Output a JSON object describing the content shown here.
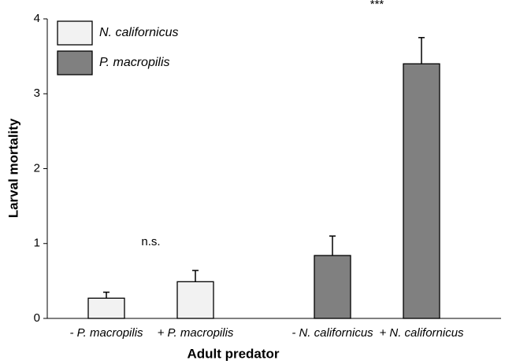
{
  "chart_data": {
    "type": "bar",
    "x_label": "Adult predator",
    "y_label": "Larval mortality",
    "categories": [
      "- P. macropilis",
      "+ P. macropilis",
      "- N. californicus",
      "+ N. californicus"
    ],
    "series": [
      {
        "name": "N. californicus",
        "color": "#f2f2f2",
        "values": [
          0.27,
          0.49,
          null,
          null
        ],
        "errors": [
          0.08,
          0.15,
          null,
          null
        ]
      },
      {
        "name": "P. macropilis",
        "color": "#808080",
        "values": [
          null,
          null,
          0.84,
          3.4
        ],
        "errors": [
          null,
          null,
          0.26,
          0.35
        ]
      }
    ],
    "annotations": [
      "n.s.",
      "***"
    ],
    "ylim": [
      0,
      4
    ],
    "yticks": [
      0,
      1,
      2,
      3,
      4
    ],
    "legend": "upper left"
  }
}
